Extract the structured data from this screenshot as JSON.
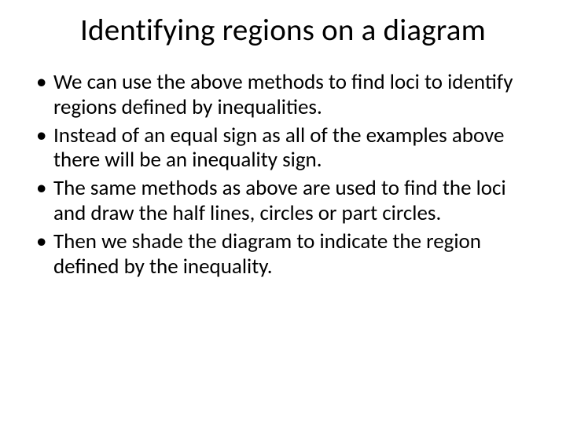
{
  "slide": {
    "title": "Identifying regions on a diagram",
    "bullets": [
      "We can use the above methods to find loci to identify regions defined by inequalities.",
      "Instead of an equal sign as all of the examples above there will be an inequality sign.",
      "The same methods as above are used to find the loci and draw the half lines, circles or part circles.",
      "Then we shade the diagram to indicate the region defined by the inequality."
    ]
  },
  "style": {
    "background_color": "#ffffff",
    "text_color": "#000000",
    "title_fontsize": 39,
    "body_fontsize": 27,
    "font_family": "Calibri"
  }
}
